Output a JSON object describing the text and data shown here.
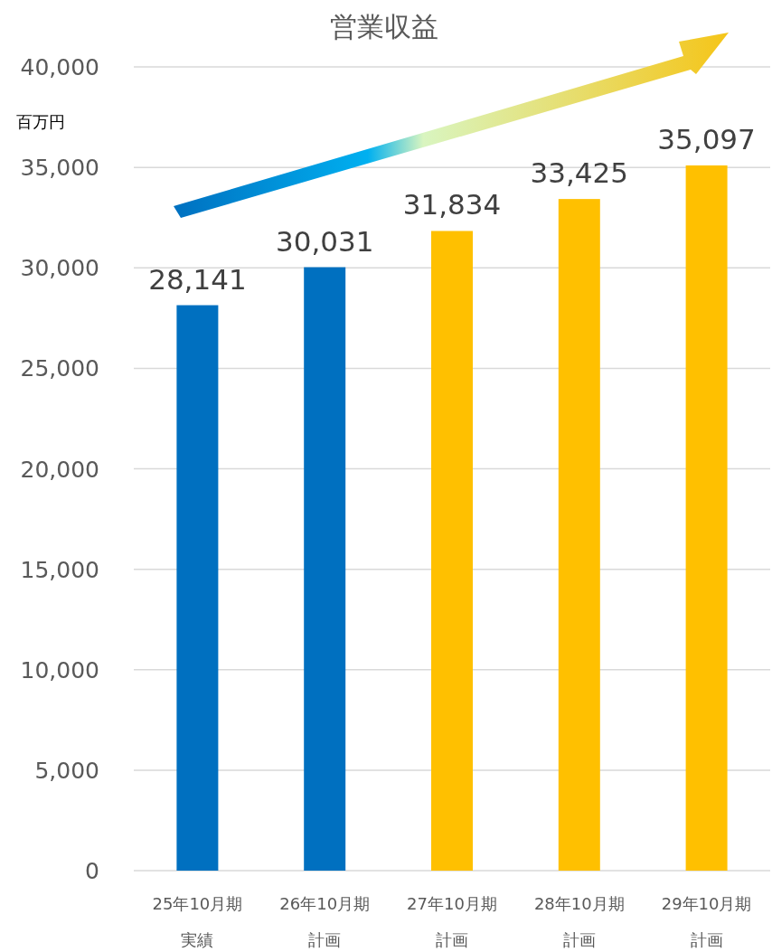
{
  "chart_data": {
    "type": "bar",
    "title": "営業収益",
    "ylabel": "百万円",
    "categories": [
      "25年10月期実績",
      "26年10月期計画",
      "27年10月期計画",
      "28年10月期計画",
      "29年10月期計画"
    ],
    "values": [
      28141,
      30031,
      31834,
      33425,
      35097
    ],
    "colors": [
      "#0070c0",
      "#0070c0",
      "#ffc000",
      "#ffc000",
      "#ffc000"
    ],
    "value_labels": [
      "28,141",
      "30,031",
      "31,834",
      "33,425",
      "35,097"
    ],
    "ylim": [
      0,
      40000
    ],
    "yticks": [
      0,
      {
        "value": 5000,
        "label": "5,000"
      },
      {
        "value": 10000,
        "label": "10,000"
      },
      {
        "value": 15000,
        "label": "15,000"
      },
      {
        "value": 20000,
        "label": "20,000"
      },
      {
        "value": 25000,
        "label": "25,000"
      },
      {
        "value": 30000,
        "label": "30,000"
      },
      {
        "value": 35000,
        "label": "35,000"
      },
      {
        "value": 40000,
        "label": "40,000"
      }
    ],
    "grid": "y"
  }
}
